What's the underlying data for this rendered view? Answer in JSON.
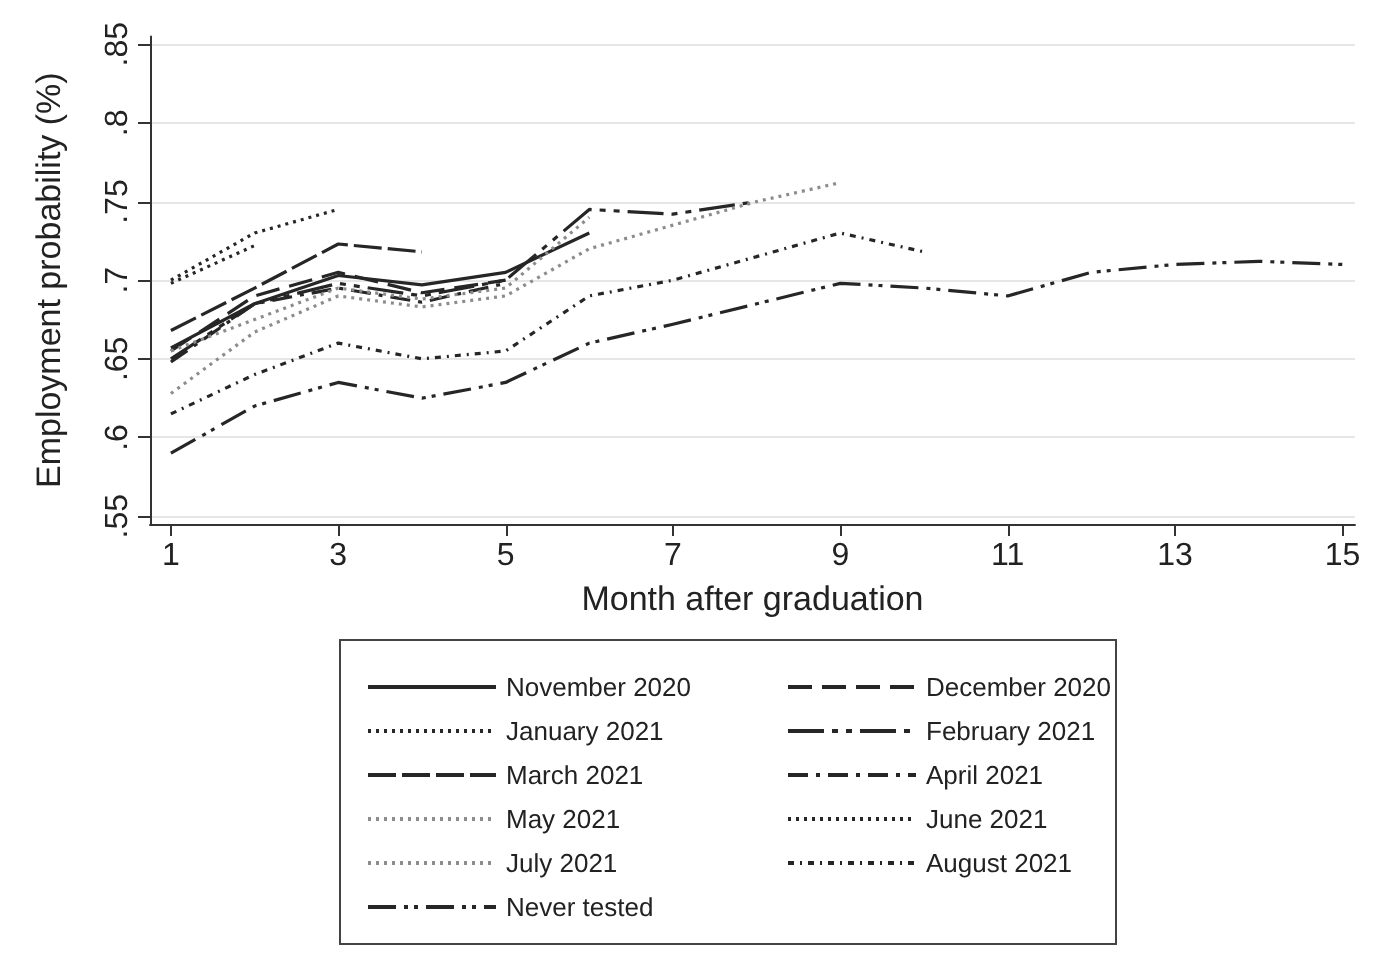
{
  "chart_data": {
    "type": "line",
    "xlabel": "Month after graduation",
    "ylabel": "Employment probability (%)",
    "xlim": [
      0.75,
      15.15
    ],
    "xticks": [
      1,
      3,
      5,
      7,
      9,
      11,
      13,
      15
    ],
    "ylim": [
      0.545,
      0.855
    ],
    "yticks": [
      {
        "value": 0.55,
        "label": ".55"
      },
      {
        "value": 0.6,
        "label": ".6"
      },
      {
        "value": 0.65,
        "label": ".65"
      },
      {
        "value": 0.7,
        "label": ".7"
      },
      {
        "value": 0.75,
        "label": ".75"
      },
      {
        "value": 0.8,
        "label": ".8"
      },
      {
        "value": 0.85,
        "label": ".85"
      }
    ],
    "grid": "y",
    "legend": "bottom",
    "marker": "none",
    "series": [
      {
        "name": "November 2020",
        "color": "#262626",
        "line_style": "solid",
        "x": [
          1,
          2,
          3,
          4,
          5,
          6
        ],
        "values": [
          0.657,
          0.685,
          0.703,
          0.697,
          0.705,
          0.73
        ]
      },
      {
        "name": "December 2020",
        "color": "#262626",
        "line_style": "dashed",
        "x": [
          1,
          2,
          3,
          4,
          5
        ],
        "values": [
          0.655,
          0.69,
          0.705,
          0.692,
          0.7
        ]
      },
      {
        "name": "January 2021",
        "color": "#262626",
        "line_style": "dotted",
        "x": [
          1,
          2,
          3
        ],
        "values": [
          0.7,
          0.73,
          0.745
        ]
      },
      {
        "name": "February 2021",
        "color": "#262626",
        "line_style": "dashed",
        "x": [
          1,
          2,
          3,
          4,
          5,
          6,
          7,
          8
        ],
        "values": [
          0.65,
          0.685,
          0.698,
          0.69,
          0.7,
          0.745,
          0.742,
          0.75
        ]
      },
      {
        "name": "March 2021",
        "color": "#262626",
        "line_style": "dashed",
        "x": [
          1,
          2,
          3,
          4
        ],
        "values": [
          0.668,
          0.695,
          0.723,
          0.718
        ]
      },
      {
        "name": "April 2021",
        "color": "#262626",
        "line_style": "dashed",
        "x": [
          1,
          2,
          3,
          4,
          5
        ],
        "values": [
          0.648,
          0.685,
          0.695,
          0.686,
          0.698
        ]
      },
      {
        "name": "May 2021",
        "color": "#8c8c8c",
        "line_style": "dotted",
        "x": [
          1,
          2,
          3,
          4,
          5,
          6,
          7,
          8,
          9
        ],
        "values": [
          0.628,
          0.667,
          0.69,
          0.683,
          0.69,
          0.72,
          0.735,
          0.75,
          0.762
        ]
      },
      {
        "name": "June 2021",
        "color": "#262626",
        "line_style": "dotted",
        "x": [
          1,
          2
        ],
        "values": [
          0.698,
          0.722
        ]
      },
      {
        "name": "July 2021",
        "color": "#8c8c8c",
        "line_style": "dotted",
        "x": [
          1,
          2,
          3,
          4,
          5,
          6
        ],
        "values": [
          0.655,
          0.675,
          0.695,
          0.688,
          0.695,
          0.74
        ]
      },
      {
        "name": "August 2021",
        "color": "#262626",
        "line_style": "dashed",
        "x": [
          1,
          2,
          3,
          4,
          5,
          6,
          7,
          8,
          9,
          10
        ],
        "values": [
          0.615,
          0.64,
          0.66,
          0.65,
          0.655,
          0.69,
          0.7,
          0.715,
          0.73,
          0.718
        ]
      },
      {
        "name": "Never tested",
        "color": "#262626",
        "line_style": "dashed",
        "x": [
          1,
          2,
          3,
          4,
          5,
          6,
          7,
          8,
          9,
          10,
          11,
          12,
          13,
          14,
          15
        ],
        "values": [
          0.59,
          0.62,
          0.635,
          0.625,
          0.635,
          0.66,
          0.672,
          0.685,
          0.698,
          0.695,
          0.69,
          0.705,
          0.71,
          0.712,
          0.71
        ]
      }
    ]
  }
}
